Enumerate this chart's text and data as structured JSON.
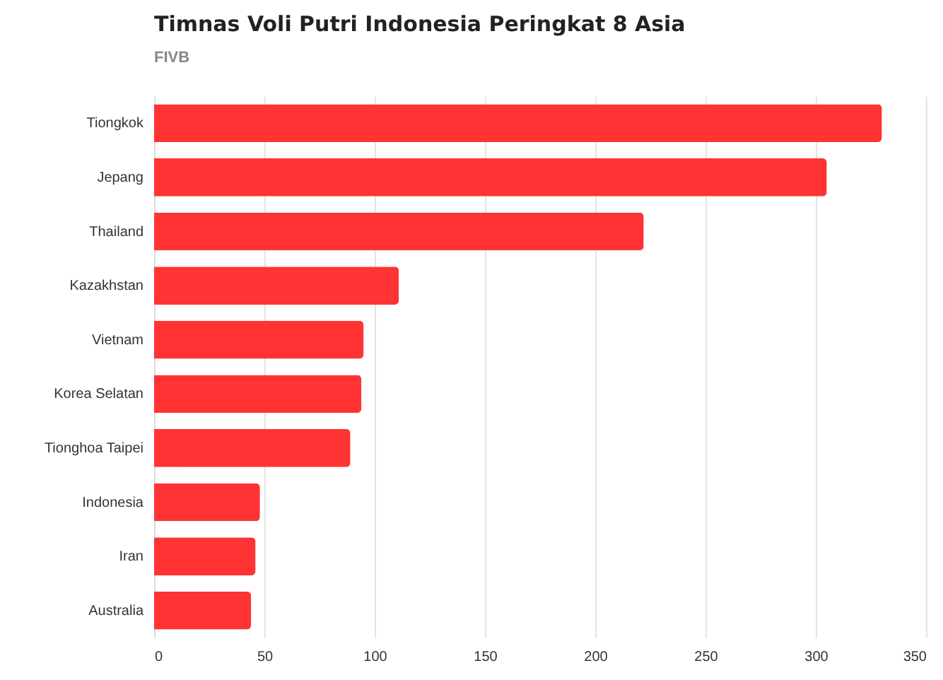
{
  "chart_data": {
    "type": "bar",
    "orientation": "horizontal",
    "title": "Timnas Voli Putri Indonesia Peringkat 8 Asia",
    "subtitle": "FIVB",
    "categories": [
      "Tiongkok",
      "Jepang",
      "Thailand",
      "Kazakhstan",
      "Vietnam",
      "Korea Selatan",
      "Tionghoa Taipei",
      "Indonesia",
      "Iran",
      "Australia"
    ],
    "values": [
      330,
      305,
      222,
      111,
      95,
      94,
      89,
      48,
      46,
      44
    ],
    "color": "#ff3333",
    "xlim": [
      0,
      350
    ],
    "xticks": [
      0,
      50,
      100,
      150,
      200,
      250,
      300,
      350
    ],
    "grid": "x"
  }
}
